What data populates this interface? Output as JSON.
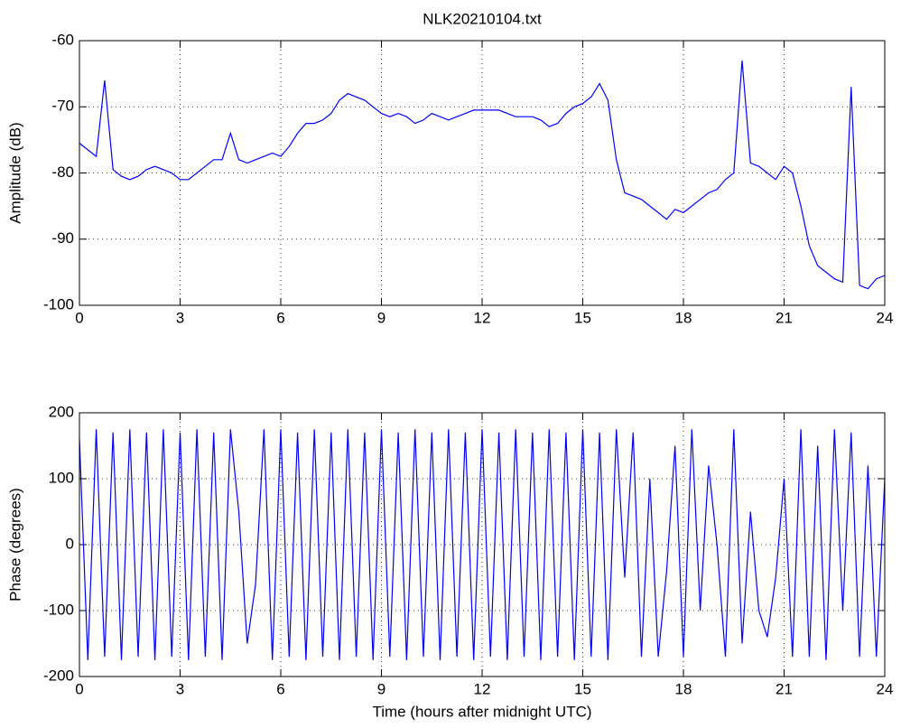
{
  "chart_data": [
    {
      "type": "line",
      "title": "NLK20210104.txt",
      "ylabel": "Amplitude (dB)",
      "x": [
        0,
        0.25,
        0.5,
        0.75,
        1,
        1.25,
        1.5,
        1.75,
        2,
        2.25,
        2.5,
        2.75,
        3,
        3.25,
        3.5,
        3.75,
        4,
        4.25,
        4.5,
        4.75,
        5,
        5.25,
        5.5,
        5.75,
        6,
        6.25,
        6.5,
        6.75,
        7,
        7.25,
        7.5,
        7.75,
        8,
        8.25,
        8.5,
        8.75,
        9,
        9.25,
        9.5,
        9.75,
        10,
        10.25,
        10.5,
        10.75,
        11,
        11.25,
        11.5,
        11.75,
        12,
        12.25,
        12.5,
        12.75,
        13,
        13.25,
        13.5,
        13.75,
        14,
        14.25,
        14.5,
        14.75,
        15,
        15.25,
        15.5,
        15.75,
        16,
        16.25,
        16.5,
        16.75,
        17,
        17.25,
        17.5,
        17.75,
        18,
        18.25,
        18.5,
        18.75,
        19,
        19.25,
        19.5,
        19.75,
        20,
        20.25,
        20.5,
        20.75,
        21,
        21.25,
        21.5,
        21.75,
        22,
        22.25,
        22.5,
        22.75,
        23,
        23.25,
        23.5,
        23.75,
        24
      ],
      "series": [
        {
          "color": "#0000ff",
          "values": [
            -75.5,
            -76.5,
            -77.5,
            -66,
            -79.5,
            -80.5,
            -81,
            -80.5,
            -79.5,
            -79,
            -79.5,
            -80,
            -81,
            -81,
            -80,
            -79,
            -78,
            -78,
            -74,
            -78,
            -78.5,
            -78,
            -77.5,
            -77,
            -77.5,
            -76,
            -74,
            -72.5,
            -72.5,
            -72,
            -71,
            -69,
            -68,
            -68.5,
            -69,
            -70,
            -71,
            -71.5,
            -71,
            -71.5,
            -72.5,
            -72,
            -71,
            -71.5,
            -72,
            -71.5,
            -71,
            -70.5,
            -70.5,
            -70.5,
            -70.5,
            -71,
            -71.5,
            -71.5,
            -71.5,
            -72,
            -73,
            -72.5,
            -71,
            -70,
            -69.5,
            -68.5,
            -66.5,
            -69,
            -78,
            -83,
            -83.5,
            -84,
            -85,
            -86,
            -87,
            -85.5,
            -86,
            -85,
            -84,
            -83,
            -82.5,
            -81,
            -80,
            -63,
            -78.5,
            -79,
            -80,
            -81,
            -79,
            -80,
            -85,
            -91,
            -94,
            -95,
            -96,
            -96.5,
            -67,
            -97,
            -97.5,
            -96,
            -95.5
          ]
        }
      ],
      "xlim": [
        0,
        24
      ],
      "xticks": [
        0,
        3,
        6,
        9,
        12,
        15,
        18,
        21,
        24
      ],
      "ylim": [
        -100,
        -60
      ],
      "yticks": [
        -100,
        -90,
        -80,
        -70,
        -60
      ],
      "grid": true
    },
    {
      "type": "line",
      "ylabel": "Phase (degrees)",
      "xlabel": "Time (hours after midnight UTC)",
      "x": [
        0,
        0.25,
        0.5,
        0.75,
        1,
        1.25,
        1.5,
        1.75,
        2,
        2.25,
        2.5,
        2.75,
        3,
        3.25,
        3.5,
        3.75,
        4,
        4.25,
        4.5,
        4.75,
        5,
        5.25,
        5.5,
        5.75,
        6,
        6.25,
        6.5,
        6.75,
        7,
        7.25,
        7.5,
        7.75,
        8,
        8.25,
        8.5,
        8.75,
        9,
        9.25,
        9.5,
        9.75,
        10,
        10.25,
        10.5,
        10.75,
        11,
        11.25,
        11.5,
        11.75,
        12,
        12.25,
        12.5,
        12.75,
        13,
        13.25,
        13.5,
        13.75,
        14,
        14.25,
        14.5,
        14.75,
        15,
        15.25,
        15.5,
        15.75,
        16,
        16.25,
        16.5,
        16.75,
        17,
        17.25,
        17.5,
        17.75,
        18,
        18.25,
        18.5,
        18.75,
        19,
        19.25,
        19.5,
        19.75,
        20,
        20.25,
        20.5,
        20.75,
        21,
        21.25,
        21.5,
        21.75,
        22,
        22.25,
        22.5,
        22.75,
        23,
        23.25,
        23.5,
        23.75,
        24
      ],
      "series": [
        {
          "color": "#0000ff",
          "values": [
            160,
            -175,
            175,
            -170,
            170,
            -175,
            175,
            -170,
            170,
            -175,
            175,
            -170,
            170,
            -175,
            175,
            -170,
            170,
            -175,
            175,
            50,
            -150,
            -60,
            175,
            -175,
            175,
            -170,
            170,
            -175,
            175,
            -170,
            170,
            -175,
            175,
            -170,
            170,
            -175,
            175,
            -170,
            170,
            -175,
            175,
            -170,
            170,
            -175,
            175,
            -170,
            170,
            -175,
            175,
            -170,
            170,
            -175,
            175,
            -170,
            170,
            -175,
            175,
            -170,
            170,
            -175,
            175,
            -170,
            170,
            -175,
            175,
            -50,
            170,
            -170,
            100,
            -170,
            -40,
            150,
            -170,
            175,
            -100,
            120,
            0,
            -170,
            175,
            -150,
            50,
            -100,
            -140,
            -50,
            100,
            -170,
            175,
            -170,
            150,
            -175,
            175,
            -100,
            170,
            -170,
            120,
            -170,
            100
          ]
        }
      ],
      "xlim": [
        0,
        24
      ],
      "xticks": [
        0,
        3,
        6,
        9,
        12,
        15,
        18,
        21,
        24
      ],
      "ylim": [
        -200,
        200
      ],
      "yticks": [
        -200,
        -100,
        0,
        100,
        200
      ],
      "grid": true
    }
  ]
}
